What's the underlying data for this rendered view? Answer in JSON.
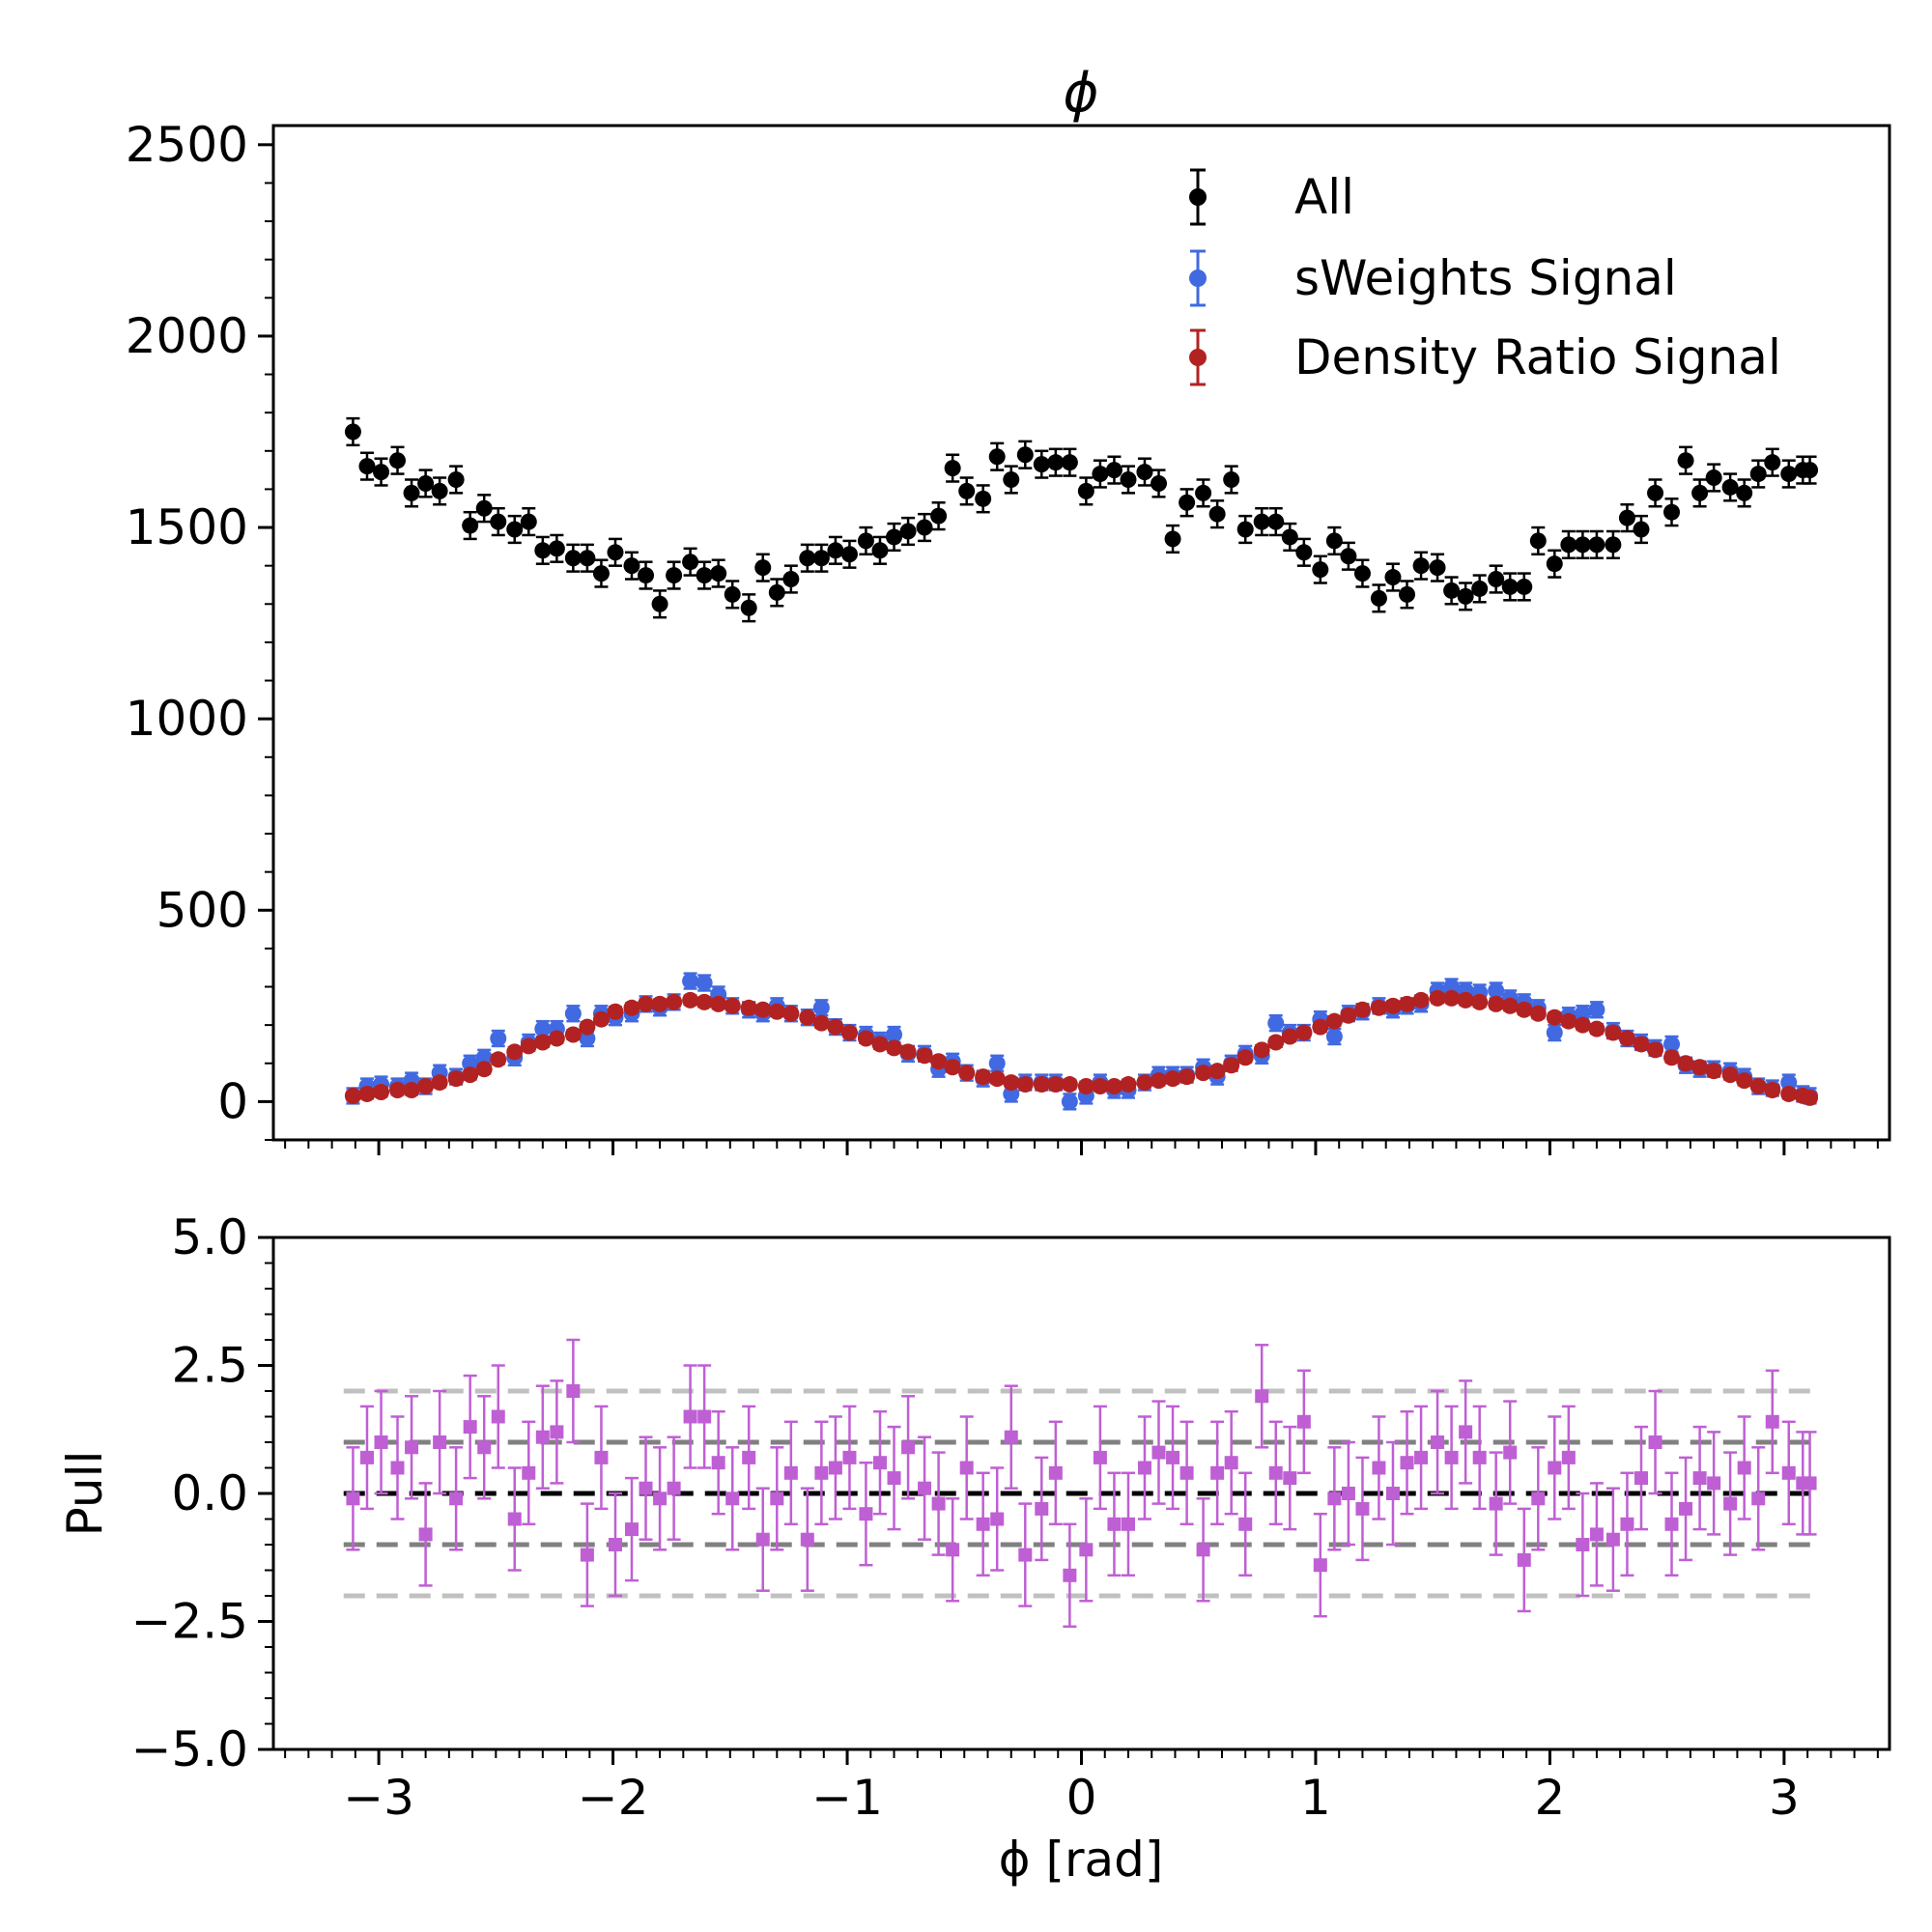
{
  "chart_data": [
    {
      "type": "scatter",
      "panel": "main",
      "title": "ϕ",
      "xlim": [
        -3.45,
        3.45
      ],
      "ylim": [
        -100,
        2550
      ],
      "yticks": [
        0,
        500,
        1000,
        1500,
        2000,
        2500
      ],
      "ytick_labels": [
        "0",
        "500",
        "1000",
        "1500",
        "2000",
        "2500"
      ],
      "x": [
        -3.11,
        -3.05,
        -2.99,
        -2.92,
        -2.86,
        -2.8,
        -2.74,
        -2.67,
        -2.61,
        -2.55,
        -2.49,
        -2.42,
        -2.36,
        -2.3,
        -2.24,
        -2.17,
        -2.11,
        -2.05,
        -1.99,
        -1.92,
        -1.86,
        -1.8,
        -1.74,
        -1.67,
        -1.61,
        -1.55,
        -1.49,
        -1.42,
        -1.36,
        -1.3,
        -1.24,
        -1.17,
        -1.11,
        -1.05,
        -0.99,
        -0.92,
        -0.86,
        -0.8,
        -0.74,
        -0.67,
        -0.61,
        -0.55,
        -0.49,
        -0.42,
        -0.36,
        -0.3,
        -0.24,
        -0.17,
        -0.11,
        -0.05,
        0.02,
        0.08,
        0.14,
        0.2,
        0.27,
        0.33,
        0.39,
        0.45,
        0.52,
        0.58,
        0.64,
        0.7,
        0.77,
        0.83,
        0.89,
        0.95,
        1.02,
        1.08,
        1.14,
        1.2,
        1.27,
        1.33,
        1.39,
        1.45,
        1.52,
        1.58,
        1.64,
        1.7,
        1.77,
        1.83,
        1.89,
        1.95,
        2.02,
        2.08,
        2.14,
        2.2,
        2.27,
        2.33,
        2.39,
        2.45,
        2.52,
        2.58,
        2.64,
        2.7,
        2.77,
        2.83,
        2.89,
        2.95,
        3.02,
        3.08,
        3.11
      ],
      "series": [
        {
          "name": "All",
          "color": "#000000",
          "error": 35,
          "values": [
            1750,
            1660,
            1645,
            1675,
            1590,
            1615,
            1595,
            1625,
            1505,
            1550,
            1515,
            1495,
            1515,
            1440,
            1445,
            1420,
            1420,
            1380,
            1435,
            1400,
            1375,
            1300,
            1375,
            1410,
            1375,
            1380,
            1325,
            1290,
            1395,
            1330,
            1365,
            1420,
            1420,
            1440,
            1430,
            1465,
            1440,
            1475,
            1490,
            1500,
            1530,
            1655,
            1595,
            1575,
            1685,
            1625,
            1690,
            1665,
            1670,
            1670,
            1595,
            1640,
            1650,
            1625,
            1645,
            1615,
            1470,
            1565,
            1590,
            1535,
            1625,
            1495,
            1515,
            1515,
            1475,
            1435,
            1390,
            1465,
            1425,
            1380,
            1315,
            1370,
            1325,
            1400,
            1395,
            1335,
            1320,
            1340,
            1365,
            1345,
            1345,
            1465,
            1405,
            1455,
            1455,
            1455,
            1455,
            1525,
            1495,
            1590,
            1540,
            1675,
            1590,
            1630,
            1605,
            1590,
            1640,
            1670,
            1640,
            1650,
            1650
          ]
        },
        {
          "name": "sWeights Signal",
          "color": "#4169e1",
          "error": 20,
          "values": [
            15,
            40,
            45,
            40,
            55,
            40,
            75,
            65,
            100,
            115,
            165,
            115,
            155,
            190,
            190,
            230,
            165,
            230,
            220,
            230,
            255,
            245,
            260,
            315,
            310,
            280,
            250,
            240,
            230,
            250,
            230,
            220,
            245,
            195,
            180,
            175,
            160,
            175,
            125,
            125,
            85,
            105,
            75,
            60,
            100,
            20,
            50,
            50,
            50,
            0,
            15,
            50,
            30,
            30,
            50,
            70,
            70,
            70,
            90,
            65,
            100,
            125,
            120,
            205,
            180,
            180,
            215,
            170,
            230,
            235,
            250,
            240,
            250,
            255,
            290,
            300,
            290,
            285,
            290,
            270,
            260,
            245,
            180,
            225,
            230,
            240,
            185,
            165,
            155,
            140,
            150,
            95,
            85,
            85,
            80,
            65,
            40,
            35,
            50,
            20,
            15
          ]
        },
        {
          "name": "Density Ratio Signal",
          "color": "#b22222",
          "error": 12,
          "values": [
            15,
            20,
            25,
            30,
            30,
            40,
            50,
            60,
            70,
            85,
            110,
            130,
            145,
            155,
            165,
            175,
            195,
            215,
            235,
            245,
            255,
            255,
            260,
            265,
            260,
            255,
            250,
            245,
            240,
            235,
            230,
            220,
            205,
            195,
            180,
            165,
            150,
            140,
            130,
            120,
            105,
            90,
            75,
            65,
            60,
            50,
            45,
            45,
            45,
            45,
            40,
            40,
            40,
            45,
            50,
            55,
            60,
            65,
            75,
            80,
            95,
            115,
            135,
            155,
            170,
            180,
            195,
            210,
            225,
            240,
            245,
            250,
            255,
            265,
            270,
            270,
            265,
            260,
            255,
            250,
            240,
            230,
            220,
            210,
            200,
            190,
            180,
            165,
            150,
            135,
            115,
            100,
            90,
            80,
            70,
            55,
            40,
            30,
            20,
            15,
            10
          ]
        }
      ],
      "legend": [
        "All",
        "sWeights Signal",
        "Density Ratio Signal"
      ],
      "legend_position": "top-right"
    },
    {
      "type": "scatter",
      "panel": "pull",
      "xlabel": "ϕ [rad]",
      "ylabel": "Pull",
      "xlim": [
        -3.45,
        3.45
      ],
      "ylim": [
        -5.0,
        5.0
      ],
      "xticks": [
        -3,
        -2,
        -1,
        0,
        1,
        2,
        3
      ],
      "xtick_labels": [
        "−3",
        "−2",
        "−1",
        "0",
        "1",
        "2",
        "3"
      ],
      "yticks": [
        -5.0,
        -2.5,
        0.0,
        2.5,
        5.0
      ],
      "ytick_labels": [
        "−5.0",
        "−2.5",
        "0.0",
        "2.5",
        "5.0"
      ],
      "reference_lines": [
        {
          "y": 0,
          "color": "#000000"
        },
        {
          "y": 1,
          "color": "#808080"
        },
        {
          "y": -1,
          "color": "#808080"
        },
        {
          "y": 2,
          "color": "#c0c0c0"
        },
        {
          "y": -2,
          "color": "#c0c0c0"
        }
      ],
      "series": [
        {
          "name": "Pull",
          "color": "#bf5fd4",
          "error": 1.0,
          "x": [
            -3.11,
            -3.05,
            -2.99,
            -2.92,
            -2.86,
            -2.8,
            -2.74,
            -2.67,
            -2.61,
            -2.55,
            -2.49,
            -2.42,
            -2.36,
            -2.3,
            -2.24,
            -2.17,
            -2.11,
            -2.05,
            -1.99,
            -1.92,
            -1.86,
            -1.8,
            -1.74,
            -1.67,
            -1.61,
            -1.55,
            -1.49,
            -1.42,
            -1.36,
            -1.3,
            -1.24,
            -1.17,
            -1.11,
            -1.05,
            -0.99,
            -0.92,
            -0.86,
            -0.8,
            -0.74,
            -0.67,
            -0.61,
            -0.55,
            -0.49,
            -0.42,
            -0.36,
            -0.3,
            -0.24,
            -0.17,
            -0.11,
            -0.05,
            0.02,
            0.08,
            0.14,
            0.2,
            0.27,
            0.33,
            0.39,
            0.45,
            0.52,
            0.58,
            0.64,
            0.7,
            0.77,
            0.83,
            0.89,
            0.95,
            1.02,
            1.08,
            1.14,
            1.2,
            1.27,
            1.33,
            1.39,
            1.45,
            1.52,
            1.58,
            1.64,
            1.7,
            1.77,
            1.83,
            1.89,
            1.95,
            2.02,
            2.08,
            2.14,
            2.2,
            2.27,
            2.33,
            2.39,
            2.45,
            2.52,
            2.58,
            2.64,
            2.7,
            2.77,
            2.83,
            2.89,
            2.95,
            3.02,
            3.08,
            3.11
          ],
          "values": [
            -0.1,
            0.7,
            1.0,
            0.5,
            0.9,
            -0.8,
            1.0,
            -0.1,
            1.3,
            0.9,
            1.5,
            -0.5,
            0.4,
            1.1,
            1.2,
            2.0,
            -1.2,
            0.7,
            -1.0,
            -0.7,
            0.1,
            -0.1,
            0.1,
            1.5,
            1.5,
            0.6,
            -0.1,
            0.7,
            -0.9,
            -0.1,
            0.4,
            -0.9,
            0.4,
            0.5,
            0.7,
            -0.4,
            0.6,
            0.3,
            0.9,
            0.1,
            -0.2,
            -1.1,
            0.5,
            -0.6,
            -0.5,
            1.1,
            -1.2,
            -0.3,
            0.4,
            -1.6,
            -1.1,
            0.7,
            -0.6,
            -0.6,
            0.5,
            0.8,
            0.7,
            0.4,
            -1.1,
            0.4,
            0.6,
            -0.6,
            1.9,
            0.4,
            0.3,
            1.4,
            -1.4,
            -0.1,
            0.0,
            -0.3,
            0.5,
            0.0,
            0.6,
            0.7,
            1.0,
            0.7,
            1.2,
            0.7,
            -0.2,
            0.8,
            -1.3,
            -0.1,
            0.5,
            0.7,
            -1.0,
            -0.8,
            -0.9,
            -0.6,
            0.3,
            1.0,
            -0.6,
            -0.3,
            0.3,
            0.2,
            -0.2,
            0.5,
            -0.1,
            1.4,
            0.4,
            0.2,
            0.2
          ]
        }
      ]
    }
  ]
}
